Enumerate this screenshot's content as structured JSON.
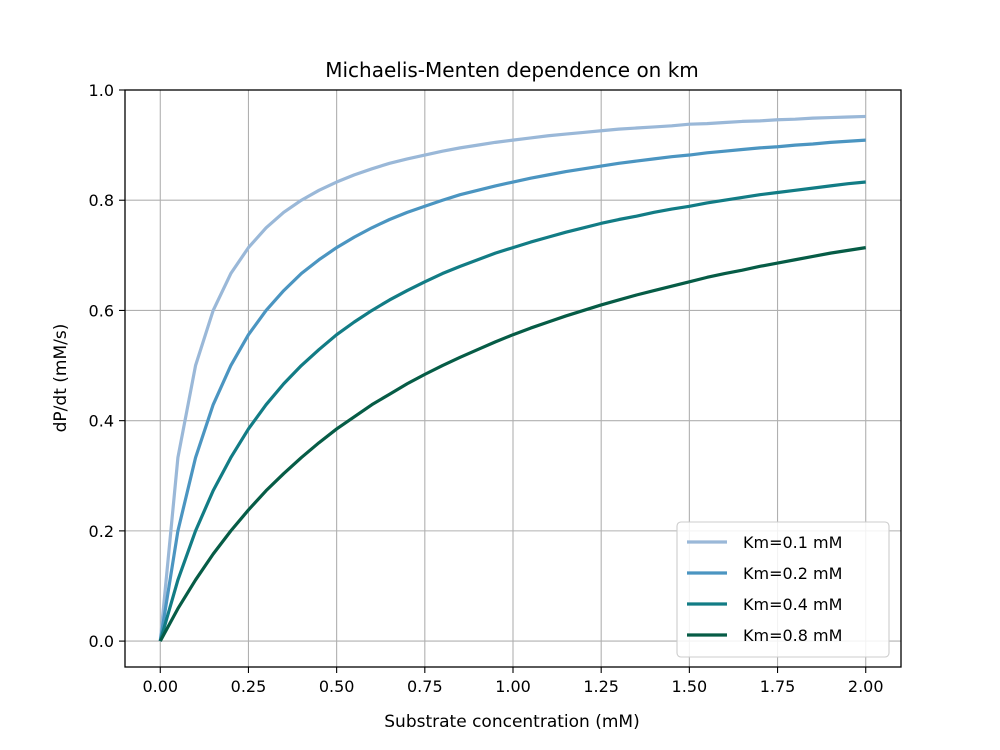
{
  "chart_data": {
    "type": "line",
    "title": "Michaelis-Menten dependence on km",
    "xlabel": "Substrate concentration (mM)",
    "ylabel": "dP/dt (mM/s)",
    "xlim": [
      -0.1,
      2.1
    ],
    "ylim": [
      -0.047,
      1.0
    ],
    "grid": true,
    "legend_position": "lower-right",
    "x_ticks": [
      "0.00",
      "0.25",
      "0.50",
      "0.75",
      "1.00",
      "1.25",
      "1.50",
      "1.75",
      "2.00"
    ],
    "y_ticks": [
      "0.0",
      "0.2",
      "0.4",
      "0.6",
      "0.8",
      "1.0"
    ],
    "x": [
      0,
      0.05,
      0.1,
      0.15,
      0.2,
      0.25,
      0.3,
      0.35,
      0.4,
      0.45,
      0.5,
      0.55,
      0.6,
      0.65,
      0.7,
      0.75,
      0.8,
      0.85,
      0.9,
      0.95,
      1.0,
      1.05,
      1.1,
      1.15,
      1.2,
      1.25,
      1.3,
      1.35,
      1.4,
      1.45,
      1.5,
      1.55,
      1.6,
      1.65,
      1.7,
      1.75,
      1.8,
      1.85,
      1.9,
      1.95,
      2.0
    ],
    "series": [
      {
        "name": "Km=0.1 mM",
        "color": "#9ab8d8",
        "values": [
          0.0,
          0.333,
          0.5,
          0.6,
          0.667,
          0.714,
          0.75,
          0.778,
          0.8,
          0.818,
          0.833,
          0.846,
          0.857,
          0.867,
          0.875,
          0.882,
          0.889,
          0.895,
          0.9,
          0.905,
          0.909,
          0.913,
          0.917,
          0.92,
          0.923,
          0.926,
          0.929,
          0.931,
          0.933,
          0.935,
          0.938,
          0.939,
          0.941,
          0.943,
          0.944,
          0.946,
          0.947,
          0.949,
          0.95,
          0.951,
          0.952
        ]
      },
      {
        "name": "Km=0.2 mM",
        "color": "#4b95c1",
        "values": [
          0.0,
          0.2,
          0.333,
          0.429,
          0.5,
          0.556,
          0.6,
          0.636,
          0.667,
          0.692,
          0.714,
          0.733,
          0.75,
          0.765,
          0.778,
          0.789,
          0.8,
          0.81,
          0.818,
          0.826,
          0.833,
          0.84,
          0.846,
          0.852,
          0.857,
          0.862,
          0.867,
          0.871,
          0.875,
          0.879,
          0.882,
          0.886,
          0.889,
          0.892,
          0.895,
          0.897,
          0.9,
          0.902,
          0.905,
          0.907,
          0.909
        ]
      },
      {
        "name": "Km=0.4 mM",
        "color": "#127c85",
        "values": [
          0.0,
          0.111,
          0.2,
          0.273,
          0.333,
          0.385,
          0.429,
          0.467,
          0.5,
          0.529,
          0.556,
          0.579,
          0.6,
          0.619,
          0.636,
          0.652,
          0.667,
          0.68,
          0.692,
          0.704,
          0.714,
          0.724,
          0.733,
          0.742,
          0.75,
          0.758,
          0.765,
          0.771,
          0.778,
          0.784,
          0.789,
          0.795,
          0.8,
          0.805,
          0.81,
          0.814,
          0.818,
          0.822,
          0.826,
          0.83,
          0.833
        ]
      },
      {
        "name": "Km=0.8 mM",
        "color": "#065c46",
        "values": [
          0.0,
          0.059,
          0.111,
          0.158,
          0.2,
          0.238,
          0.273,
          0.304,
          0.333,
          0.36,
          0.385,
          0.407,
          0.429,
          0.448,
          0.467,
          0.484,
          0.5,
          0.515,
          0.529,
          0.543,
          0.556,
          0.568,
          0.579,
          0.59,
          0.6,
          0.61,
          0.619,
          0.628,
          0.636,
          0.644,
          0.652,
          0.66,
          0.667,
          0.673,
          0.68,
          0.686,
          0.692,
          0.698,
          0.704,
          0.709,
          0.714
        ]
      }
    ]
  }
}
